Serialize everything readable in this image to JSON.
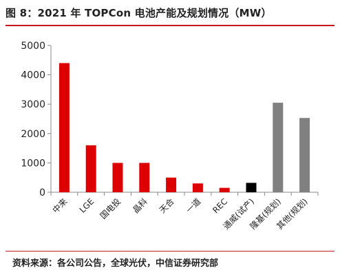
{
  "header": {
    "title": "图 8：2021 年 TOPCon 电池产能及规划情况（MW）"
  },
  "footer": {
    "source": "资料来源：各公司公告，全球光伏，中信证券研究部"
  },
  "colors": {
    "accent": "#c4161c",
    "bar_existing": "#dd0000",
    "bar_trial": "#000000",
    "bar_planned": "#808080"
  },
  "chart_data": {
    "type": "bar",
    "title": "",
    "xlabel": "",
    "ylabel": "",
    "ylim": [
      0,
      5000
    ],
    "yticks": [
      0,
      1000,
      2000,
      3000,
      4000,
      5000
    ],
    "categories": [
      "中来",
      "LGE",
      "国电投",
      "晶科",
      "天合",
      "一道",
      "REC",
      "通威(试产)",
      "隆基(规划)",
      "其他(规划)"
    ],
    "values": [
      4400,
      1600,
      1000,
      1000,
      500,
      300,
      150,
      320,
      3050,
      2530
    ],
    "bar_colors": [
      "#dd0000",
      "#dd0000",
      "#dd0000",
      "#dd0000",
      "#dd0000",
      "#dd0000",
      "#dd0000",
      "#000000",
      "#808080",
      "#808080"
    ],
    "grid": false,
    "legend": "none"
  }
}
